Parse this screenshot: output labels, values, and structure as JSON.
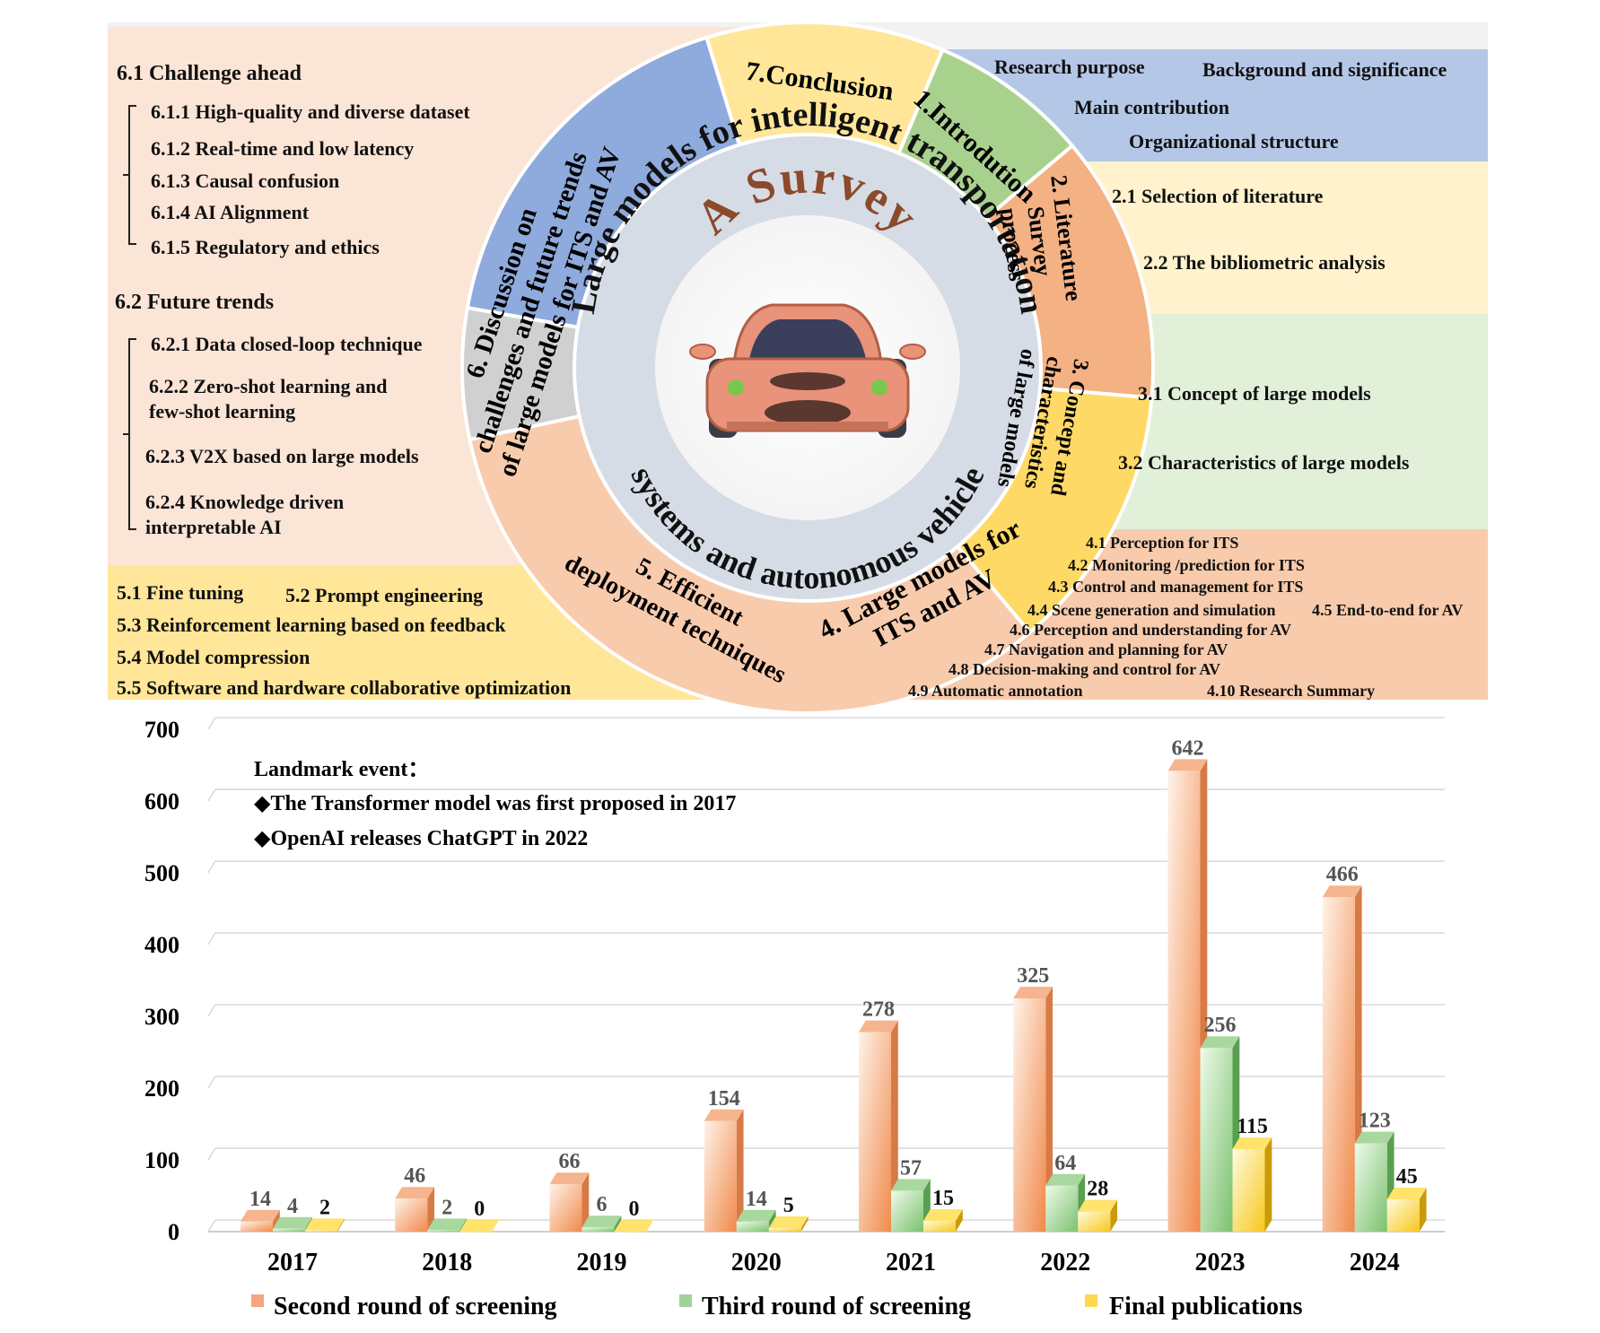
{
  "survey": {
    "center_word": "A Survey",
    "ring_title_top": "Large models for intelligent transportation",
    "ring_title_bottom": "systems and autonomous vehicle",
    "sectors": [
      {
        "id": "s1",
        "lines": [
          "1.Introdution"
        ]
      },
      {
        "id": "s2",
        "lines": [
          "2. Literature",
          "Survey",
          "process"
        ]
      },
      {
        "id": "s3",
        "lines": [
          "3. Concept and",
          "characteristics",
          "of large models"
        ]
      },
      {
        "id": "s4",
        "lines": [
          "4. Large models for",
          "ITS and AV"
        ]
      },
      {
        "id": "s5",
        "lines": [
          "5. Efficient",
          "deployment techniques"
        ]
      },
      {
        "id": "s6",
        "lines": [
          "6. Discussion on",
          "challenges and future trends",
          "of large models for ITS and AV"
        ]
      },
      {
        "id": "s7",
        "lines": [
          "7.Conclusion"
        ]
      }
    ],
    "panels": {
      "intro": [
        "Research purpose",
        "Background and significance",
        "Main contribution",
        "Organizational structure"
      ],
      "lit": [
        "2.1 Selection of literature",
        "2.2 The bibliometric analysis"
      ],
      "concept": [
        "3.1 Concept of large models",
        "3.2 Characteristics of large models"
      ],
      "its": [
        "4.1 Perception for ITS",
        "4.2 Monitoring /prediction for ITS",
        "4.3 Control and management for ITS",
        "4.4 Scene generation and simulation",
        "4.5 End-to-end for AV",
        "4.6 Perception and understanding for AV",
        "4.7 Navigation and planning for AV",
        "4.8 Decision-making and control for AV",
        "4.9 Automatic annotation",
        "4.10 Research Summary"
      ],
      "deploy": [
        "5.1 Fine tuning",
        "5.2 Prompt engineering",
        "5.3 Reinforcement learning based on feedback",
        "5.4 Model compression",
        "5.5 Software and hardware collaborative optimization"
      ],
      "challenge_title": "6.1 Challenge ahead",
      "challenges": [
        "6.1.1 High-quality and diverse dataset",
        "6.1.2 Real-time and low latency",
        "6.1.3 Causal confusion",
        "6.1.4 AI Alignment",
        "6.1.5 Regulatory and ethics"
      ],
      "trends_title": "6.2 Future trends",
      "trends": [
        "6.2.1 Data closed-loop technique",
        "6.2.2 Zero-shot learning and",
        "few-shot learning",
        "6.2.3 V2X based on large models",
        "6.2.4 Knowledge driven",
        "interpretable AI"
      ]
    },
    "colors": {
      "intro": "#b4c7e7",
      "intro_sector": "#8faadc",
      "lit": "#fff2cc",
      "lit_sector": "#ffe699",
      "concept": "#e2f0d9",
      "concept_sector": "#a9d18e",
      "its": "#f8cbad",
      "its_sector": "#f4b183",
      "deploy": "#ffe699",
      "deploy_sector": "#ffd966",
      "disc": "#fbe5d6",
      "disc_sector": "#f8cbad",
      "concl_sector": "#d0d0d0",
      "ring": "#d6dce5"
    }
  },
  "chart_data": {
    "type": "bar",
    "categories": [
      "2017",
      "2018",
      "2019",
      "2020",
      "2021",
      "2022",
      "2023",
      "2024"
    ],
    "series": [
      {
        "name": "Second round of screening",
        "values": [
          14,
          46,
          66,
          154,
          278,
          325,
          642,
          466
        ],
        "color": "#f4a582"
      },
      {
        "name": "Third round of screening",
        "values": [
          4,
          2,
          6,
          14,
          57,
          64,
          256,
          123
        ],
        "color": "#9fd39a"
      },
      {
        "name": "Final publications",
        "values": [
          2,
          0,
          0,
          5,
          15,
          28,
          115,
          45
        ],
        "color": "#ffd94d"
      }
    ],
    "yticks": [
      "0",
      "100",
      "200",
      "300",
      "400",
      "500",
      "600",
      "700"
    ],
    "ylim": [
      0,
      700
    ],
    "grid": true,
    "legend_position": "bottom",
    "annotation": {
      "title": "Landmark event：",
      "lines": [
        "◆The Transformer model was first proposed in 2017",
        "◆OpenAI releases ChatGPT in 2022"
      ]
    }
  }
}
